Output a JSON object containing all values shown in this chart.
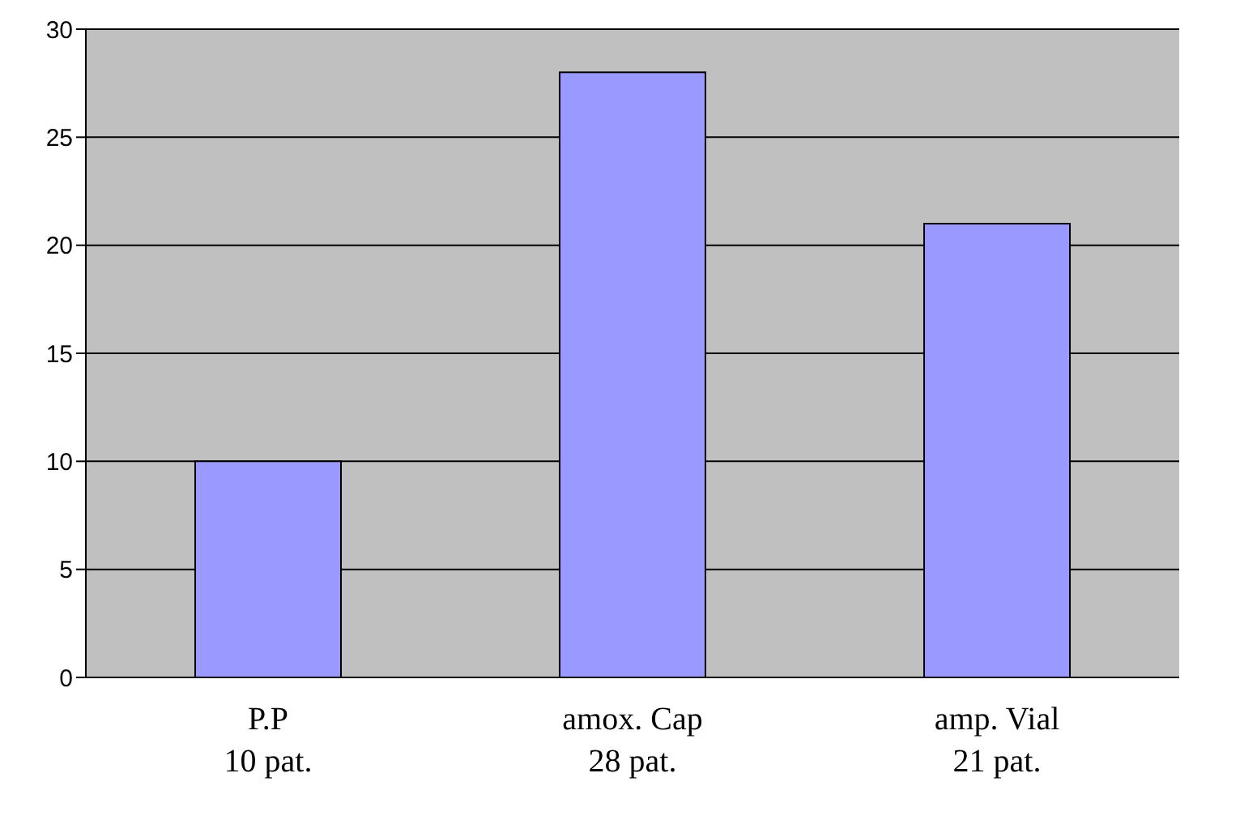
{
  "chart_data": {
    "type": "bar",
    "categories": [
      "P.P\n10 pat.",
      "amox. Cap\n28 pat.",
      "amp. Vial\n21 pat."
    ],
    "values": [
      10,
      28,
      21
    ],
    "color": "#9999ff",
    "ylim": [
      0,
      30
    ],
    "yticks": [
      0,
      5,
      10,
      15,
      20,
      25,
      30
    ],
    "grid": "y",
    "legend": false
  }
}
